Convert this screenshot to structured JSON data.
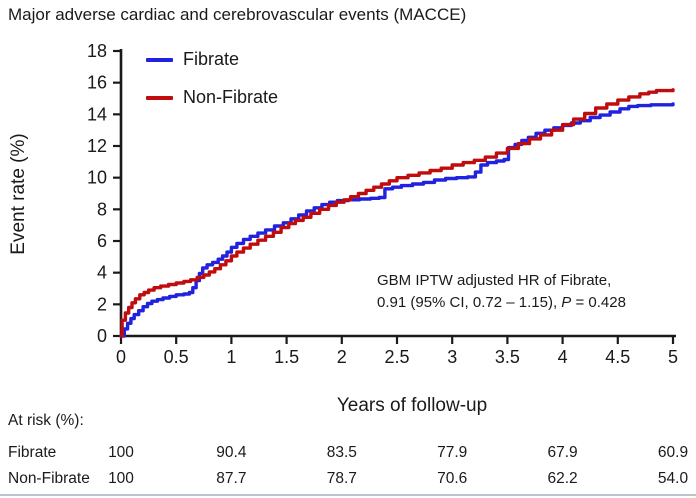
{
  "colors": {
    "fibrate": "#2121e0",
    "non_fibrate": "#c00c0c",
    "axis": "#1a1a1a",
    "divider": "#bcc3cd"
  },
  "legend": [
    {
      "label": "Fibrate",
      "color_key": "fibrate"
    },
    {
      "label": "Non-Fibrate",
      "color_key": "non_fibrate"
    }
  ],
  "annotation": {
    "line1": "GBM IPTW adjusted HR of Fibrate,",
    "line2_pre": "0.91 (95% CI, 0.72 – 1.15), ",
    "line2_italic": "P",
    "line2_post": " = 0.428"
  },
  "chart_data": {
    "type": "line",
    "step": true,
    "title": "Major adverse cardiac and cerebrovascular events (MACCE)",
    "xlabel": "Years of follow-up",
    "ylabel": "Event rate (%)",
    "xlim": [
      0,
      5
    ],
    "ylim": [
      0,
      18
    ],
    "xticks": [
      "0",
      "0.5",
      "1",
      "1.5",
      "2",
      "2.5",
      "3",
      "3.5",
      "4",
      "4.5",
      "5"
    ],
    "yticks": [
      "0",
      "2",
      "4",
      "6",
      "8",
      "10",
      "12",
      "14",
      "16",
      "18"
    ],
    "grid": false,
    "legend_position": "inside top-left",
    "annotation_text": "GBM IPTW adjusted HR of Fibrate, 0.91 (95% CI, 0.72 – 1.15), P = 0.428",
    "series": [
      {
        "name": "Fibrate",
        "color": "#2121e0",
        "points": [
          [
            0,
            0
          ],
          [
            0.03,
            0.45
          ],
          [
            0.06,
            0.8
          ],
          [
            0.09,
            1.1
          ],
          [
            0.12,
            1.35
          ],
          [
            0.16,
            1.6
          ],
          [
            0.2,
            1.85
          ],
          [
            0.24,
            2.05
          ],
          [
            0.28,
            2.2
          ],
          [
            0.33,
            2.3
          ],
          [
            0.38,
            2.4
          ],
          [
            0.44,
            2.5
          ],
          [
            0.5,
            2.6
          ],
          [
            0.57,
            2.65
          ],
          [
            0.62,
            2.75
          ],
          [
            0.65,
            3.05
          ],
          [
            0.68,
            3.5
          ],
          [
            0.71,
            3.95
          ],
          [
            0.74,
            4.3
          ],
          [
            0.78,
            4.5
          ],
          [
            0.83,
            4.65
          ],
          [
            0.88,
            4.85
          ],
          [
            0.92,
            5.05
          ],
          [
            0.96,
            5.3
          ],
          [
            1.0,
            5.6
          ],
          [
            1.05,
            5.85
          ],
          [
            1.11,
            6.1
          ],
          [
            1.17,
            6.3
          ],
          [
            1.24,
            6.5
          ],
          [
            1.31,
            6.7
          ],
          [
            1.39,
            6.95
          ],
          [
            1.47,
            7.15
          ],
          [
            1.54,
            7.4
          ],
          [
            1.61,
            7.65
          ],
          [
            1.68,
            7.9
          ],
          [
            1.75,
            8.1
          ],
          [
            1.82,
            8.3
          ],
          [
            1.89,
            8.45
          ],
          [
            1.96,
            8.55
          ],
          [
            2.06,
            8.6
          ],
          [
            2.16,
            8.65
          ],
          [
            2.26,
            8.7
          ],
          [
            2.34,
            8.75
          ],
          [
            2.39,
            9.3
          ],
          [
            2.46,
            9.4
          ],
          [
            2.54,
            9.5
          ],
          [
            2.64,
            9.6
          ],
          [
            2.74,
            9.7
          ],
          [
            2.84,
            9.85
          ],
          [
            2.94,
            9.95
          ],
          [
            3.04,
            10.0
          ],
          [
            3.14,
            10.05
          ],
          [
            3.21,
            10.35
          ],
          [
            3.26,
            10.8
          ],
          [
            3.32,
            10.95
          ],
          [
            3.4,
            11.05
          ],
          [
            3.47,
            11.15
          ],
          [
            3.51,
            11.9
          ],
          [
            3.57,
            12.1
          ],
          [
            3.63,
            12.35
          ],
          [
            3.69,
            12.55
          ],
          [
            3.76,
            12.8
          ],
          [
            3.84,
            13.0
          ],
          [
            3.92,
            13.15
          ],
          [
            4.0,
            13.3
          ],
          [
            4.08,
            13.45
          ],
          [
            4.16,
            13.6
          ],
          [
            4.25,
            13.8
          ],
          [
            4.34,
            13.95
          ],
          [
            4.43,
            14.15
          ],
          [
            4.52,
            14.35
          ],
          [
            4.6,
            14.5
          ],
          [
            4.68,
            14.55
          ],
          [
            4.8,
            14.6
          ],
          [
            4.95,
            14.6
          ],
          [
            5.0,
            14.65
          ]
        ]
      },
      {
        "name": "Non-Fibrate",
        "color": "#c00c0c",
        "points": [
          [
            0,
            0
          ],
          [
            0.01,
            1.0
          ],
          [
            0.04,
            1.45
          ],
          [
            0.07,
            1.8
          ],
          [
            0.1,
            2.1
          ],
          [
            0.13,
            2.35
          ],
          [
            0.17,
            2.6
          ],
          [
            0.21,
            2.75
          ],
          [
            0.25,
            2.9
          ],
          [
            0.3,
            3.05
          ],
          [
            0.36,
            3.15
          ],
          [
            0.43,
            3.25
          ],
          [
            0.5,
            3.35
          ],
          [
            0.57,
            3.45
          ],
          [
            0.63,
            3.55
          ],
          [
            0.69,
            3.7
          ],
          [
            0.75,
            3.85
          ],
          [
            0.8,
            4.05
          ],
          [
            0.85,
            4.25
          ],
          [
            0.9,
            4.5
          ],
          [
            0.95,
            4.75
          ],
          [
            1.0,
            5.05
          ],
          [
            1.05,
            5.3
          ],
          [
            1.11,
            5.55
          ],
          [
            1.17,
            5.8
          ],
          [
            1.24,
            6.05
          ],
          [
            1.31,
            6.3
          ],
          [
            1.38,
            6.55
          ],
          [
            1.45,
            6.85
          ],
          [
            1.52,
            7.1
          ],
          [
            1.58,
            7.3
          ],
          [
            1.65,
            7.5
          ],
          [
            1.72,
            7.75
          ],
          [
            1.8,
            8.0
          ],
          [
            1.88,
            8.25
          ],
          [
            1.95,
            8.45
          ],
          [
            2.02,
            8.6
          ],
          [
            2.08,
            8.8
          ],
          [
            2.15,
            9.0
          ],
          [
            2.22,
            9.2
          ],
          [
            2.29,
            9.4
          ],
          [
            2.36,
            9.6
          ],
          [
            2.43,
            9.8
          ],
          [
            2.5,
            10.0
          ],
          [
            2.6,
            10.15
          ],
          [
            2.7,
            10.3
          ],
          [
            2.8,
            10.45
          ],
          [
            2.9,
            10.6
          ],
          [
            3.0,
            10.8
          ],
          [
            3.1,
            10.95
          ],
          [
            3.2,
            11.1
          ],
          [
            3.3,
            11.3
          ],
          [
            3.4,
            11.55
          ],
          [
            3.5,
            11.85
          ],
          [
            3.6,
            12.15
          ],
          [
            3.7,
            12.45
          ],
          [
            3.8,
            12.7
          ],
          [
            3.9,
            13.0
          ],
          [
            4.0,
            13.35
          ],
          [
            4.1,
            13.7
          ],
          [
            4.2,
            14.05
          ],
          [
            4.3,
            14.4
          ],
          [
            4.4,
            14.65
          ],
          [
            4.5,
            14.9
          ],
          [
            4.6,
            15.1
          ],
          [
            4.7,
            15.3
          ],
          [
            4.78,
            15.4
          ],
          [
            4.85,
            15.5
          ],
          [
            5.0,
            15.55
          ]
        ]
      }
    ]
  },
  "at_risk": {
    "heading": "At risk (%):",
    "years": [
      0,
      1,
      2,
      3,
      4,
      5
    ],
    "rows": [
      {
        "label": "Fibrate",
        "values": [
          "100",
          "90.4",
          "83.5",
          "77.9",
          "67.9",
          "60.9"
        ]
      },
      {
        "label": "Non-Fibrate",
        "values": [
          "100",
          "87.7",
          "78.7",
          "70.6",
          "62.2",
          "54.0"
        ]
      }
    ]
  }
}
